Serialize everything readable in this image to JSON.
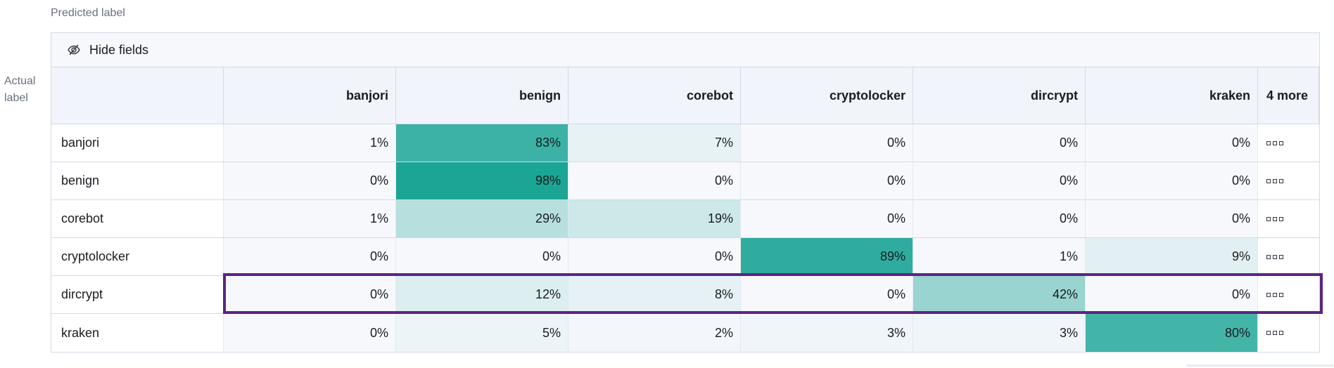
{
  "predicted_label": "Predicted label",
  "actual_label": "Actual label",
  "toolbar": {
    "hide_fields": "Hide fields",
    "icon": "eye-slash-icon"
  },
  "columns": [
    "banjori",
    "benign",
    "corebot",
    "cryptolocker",
    "dircrypt",
    "kraken"
  ],
  "more_columns": "4 more",
  "rows": [
    {
      "label": "banjori",
      "values": [
        1,
        83,
        7,
        0,
        0,
        0
      ]
    },
    {
      "label": "benign",
      "values": [
        0,
        98,
        0,
        0,
        0,
        0
      ]
    },
    {
      "label": "corebot",
      "values": [
        1,
        29,
        19,
        0,
        0,
        0
      ]
    },
    {
      "label": "cryptolocker",
      "values": [
        0,
        0,
        0,
        89,
        1,
        9
      ]
    },
    {
      "label": "dircrypt",
      "values": [
        0,
        12,
        8,
        0,
        42,
        0
      ]
    },
    {
      "label": "kraken",
      "values": [
        0,
        5,
        2,
        3,
        3,
        80
      ]
    }
  ],
  "highlighted_row": "dircrypt",
  "colors": {
    "low": "#f7f8fc",
    "high": "#16a393",
    "highlight": "#5c2483"
  }
}
